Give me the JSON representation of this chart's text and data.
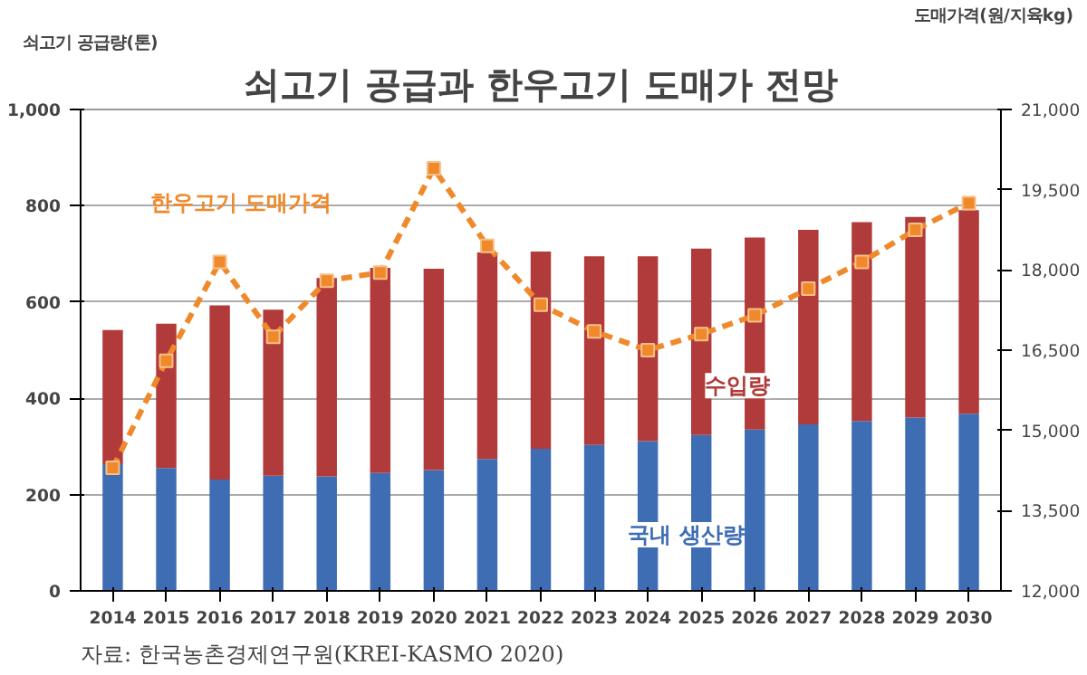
{
  "chart_data": {
    "type": "bar",
    "title": "쇠고기 공급과 한우고기 도매가 전망",
    "ylabel": "쇠고기 공급량(톤)",
    "y2label": "도매가격(원/지육kg)",
    "categories": [
      "2014",
      "2015",
      "2016",
      "2017",
      "2018",
      "2019",
      "2020",
      "2021",
      "2022",
      "2023",
      "2024",
      "2025",
      "2026",
      "2027",
      "2028",
      "2029",
      "2030"
    ],
    "stacked": true,
    "series": [
      {
        "name": "국내 생산량",
        "color": "#3e6db4",
        "values": [
          263,
          255,
          231,
          239,
          238,
          245,
          251,
          274,
          295,
          303,
          311,
          324,
          335,
          346,
          353,
          360,
          368
        ]
      },
      {
        "name": "수입량",
        "color": "#b13a3a",
        "values": [
          279,
          300,
          362,
          345,
          412,
          426,
          418,
          429,
          410,
          392,
          384,
          387,
          399,
          404,
          413,
          417,
          423
        ]
      },
      {
        "name": "한우고기 도매가격",
        "type": "line",
        "axis": "y2",
        "color": "#f0892a",
        "line_style": "dashed",
        "marker": "square",
        "values": [
          14300,
          16300,
          18150,
          16750,
          17800,
          17950,
          19900,
          18450,
          17350,
          16850,
          16500,
          16800,
          17150,
          17650,
          18150,
          18750,
          19250
        ]
      }
    ],
    "ylim": [
      0,
      1000
    ],
    "yticks": [
      0,
      {
        "value": 200,
        "label": "200"
      },
      {
        "value": 400,
        "label": "400"
      },
      {
        "value": 600,
        "label": "600"
      },
      {
        "value": 800,
        "label": "800"
      },
      {
        "value": 1000,
        "label": "1,000"
      }
    ],
    "y2lim": [
      12000,
      21000
    ],
    "y2ticks": [
      {
        "value": 12000,
        "label": "12,000"
      },
      {
        "value": 13500,
        "label": "13,500"
      },
      {
        "value": 15000,
        "label": "15,000"
      },
      {
        "value": 16500,
        "label": "16,500"
      },
      {
        "value": 18000,
        "label": "18,000"
      },
      {
        "value": 19500,
        "label": "19,500"
      },
      {
        "value": 21000,
        "label": "21,000"
      }
    ],
    "grid": "y",
    "annotations": [
      "자료: 한국농촌경제연구원(KREI-KASMO 2020)"
    ]
  }
}
